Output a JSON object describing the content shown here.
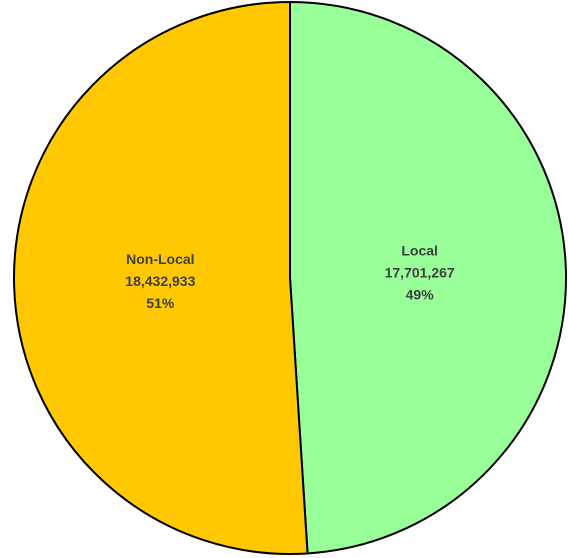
{
  "chart_data": {
    "type": "pie",
    "categories": [
      "Local",
      "Non-Local"
    ],
    "values": [
      17701267,
      18432933
    ],
    "value_labels": [
      "17,701,267",
      "18,432,933"
    ],
    "percent_labels": [
      "49%",
      "51%"
    ],
    "colors": [
      "#99ff99",
      "#ffc800"
    ]
  }
}
